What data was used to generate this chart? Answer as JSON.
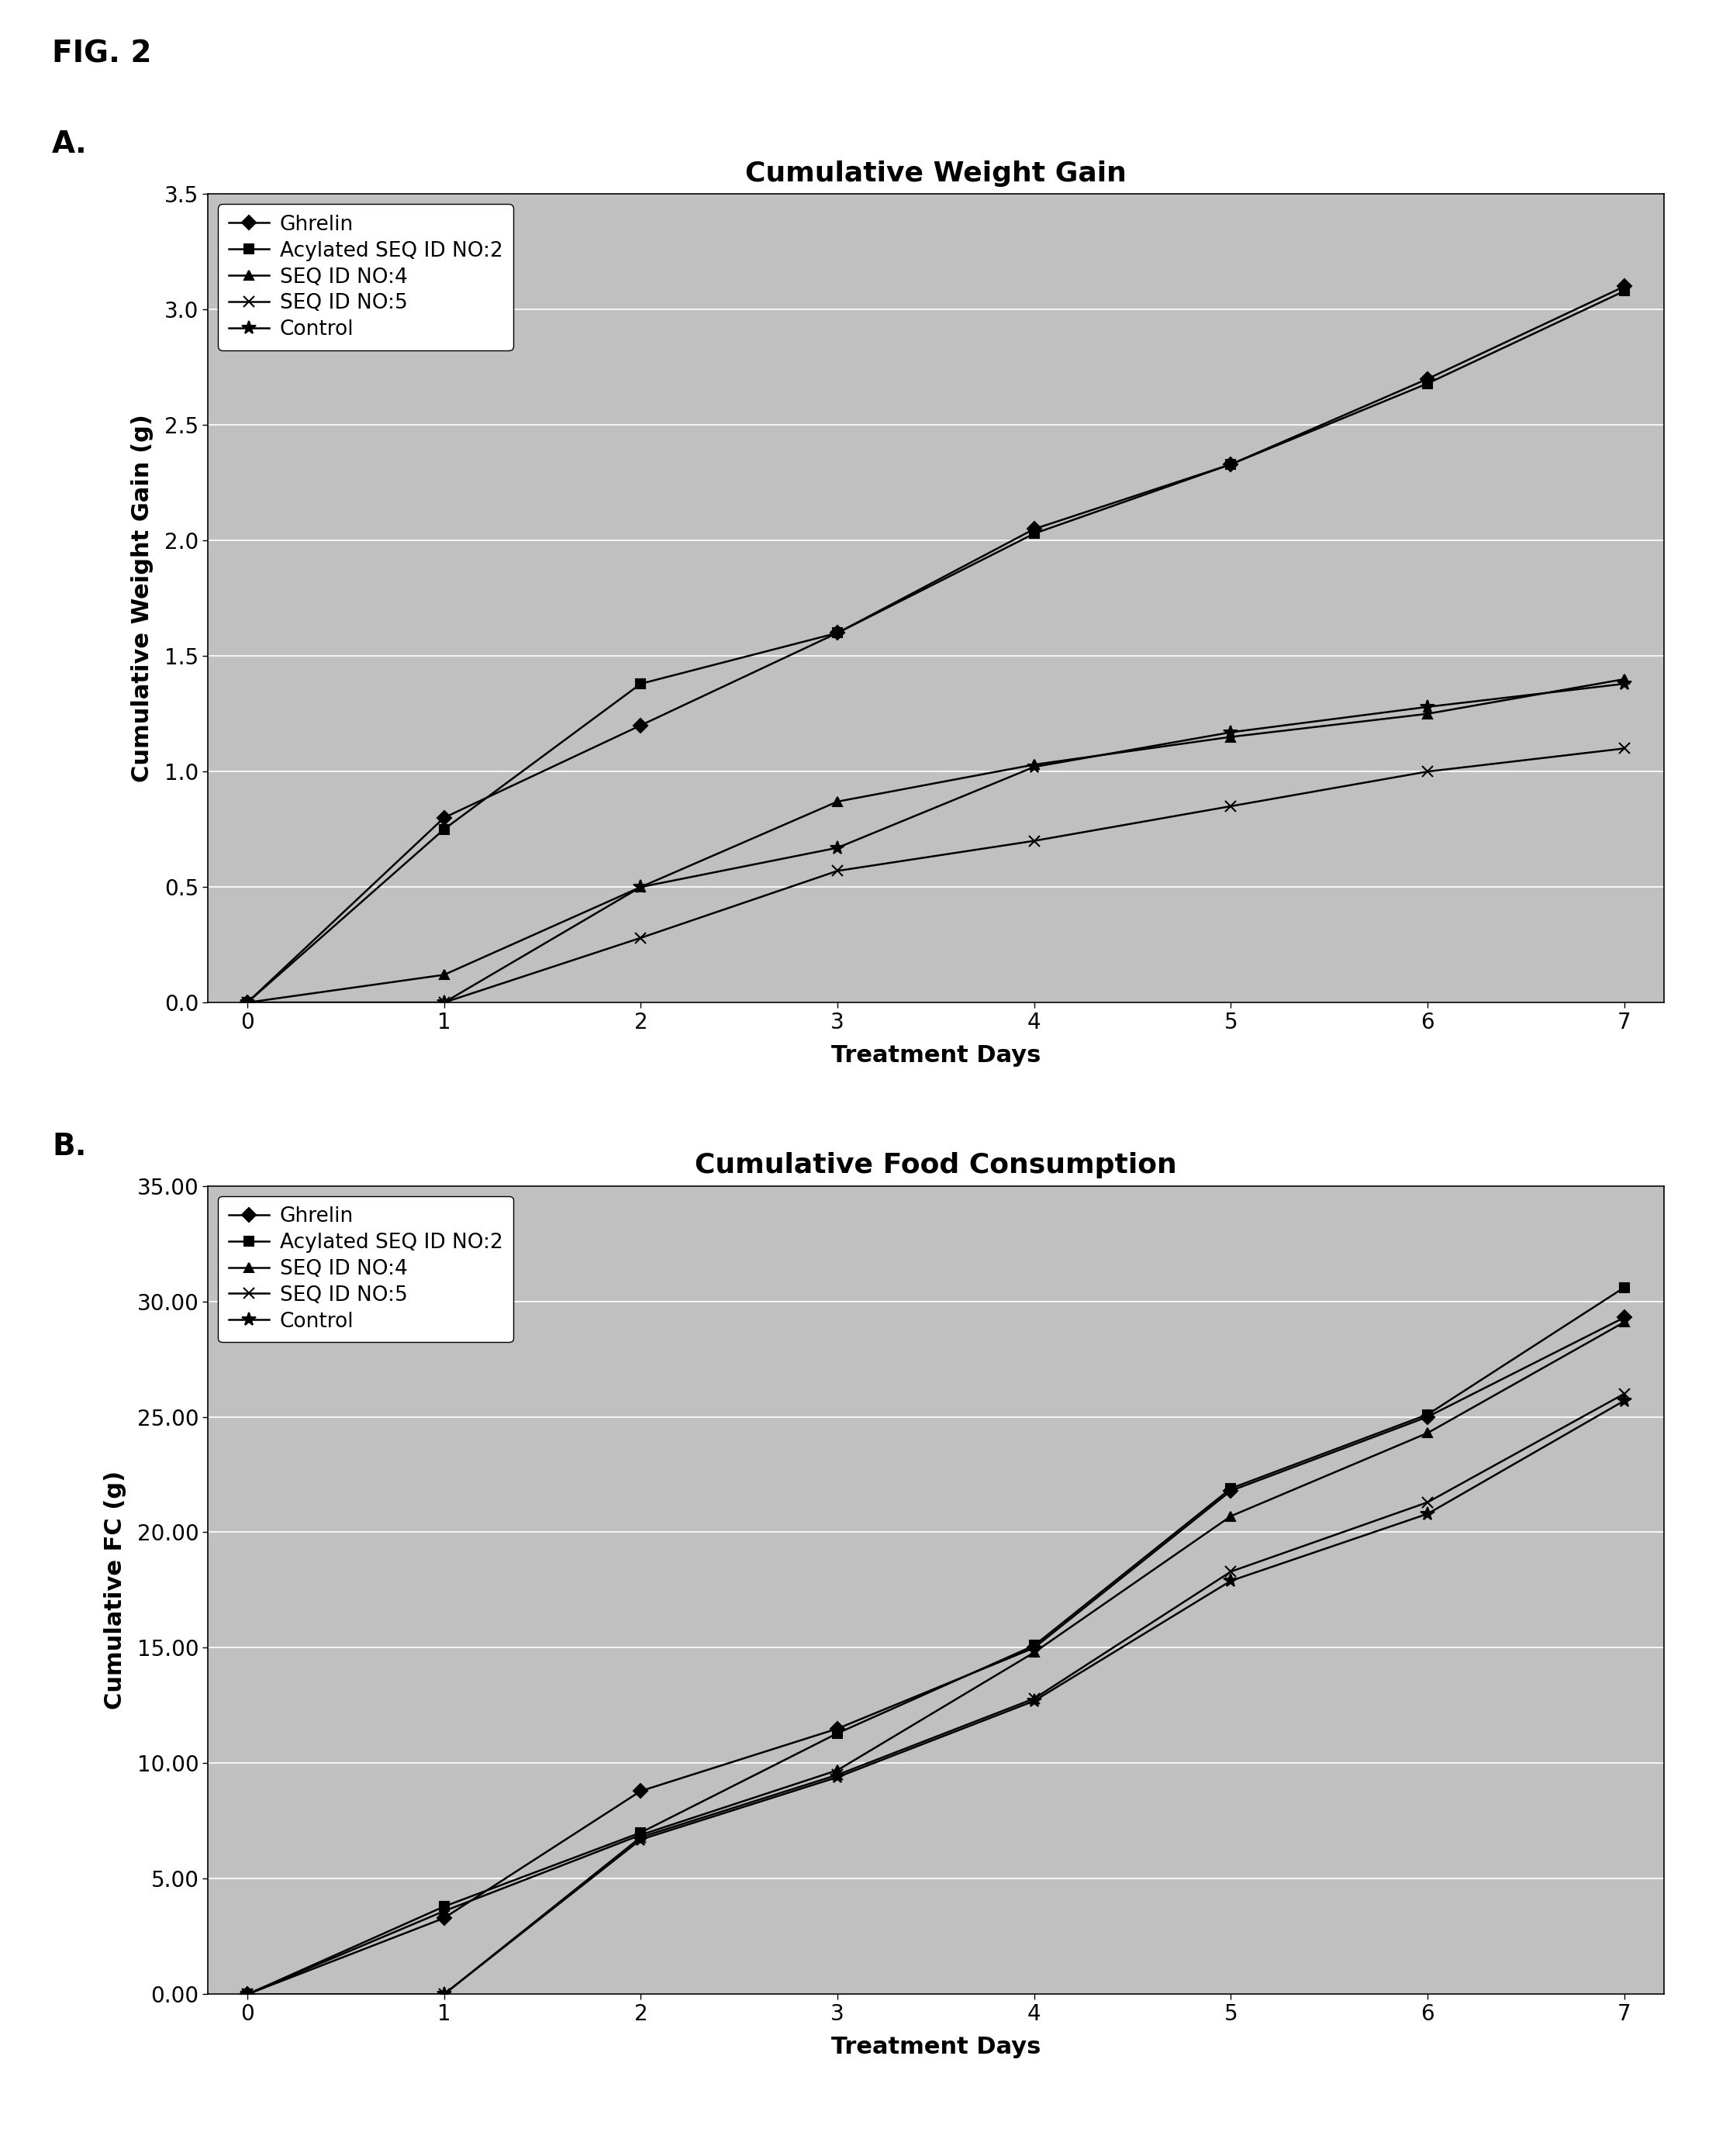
{
  "fig2_label": "FIG. 2",
  "panel_A_label": "A.",
  "panel_B_label": "B.",
  "plot_A": {
    "title": "Cumulative Weight Gain",
    "xlabel": "Treatment Days",
    "ylabel": "Cumulative Weight Gain (g)",
    "xlim": [
      -0.2,
      7.2
    ],
    "ylim": [
      0.0,
      3.5
    ],
    "yticks": [
      0.0,
      0.5,
      1.0,
      1.5,
      2.0,
      2.5,
      3.0,
      3.5
    ],
    "xticks": [
      0,
      1,
      2,
      3,
      4,
      5,
      6,
      7
    ],
    "series": [
      {
        "label": "Ghrelin",
        "x": [
          0,
          1,
          2,
          3,
          4,
          5,
          6,
          7
        ],
        "y": [
          0.0,
          0.8,
          1.2,
          1.6,
          2.05,
          2.33,
          2.7,
          3.1
        ],
        "color": "#000000",
        "marker": "D",
        "markersize": 9,
        "linewidth": 1.8
      },
      {
        "label": "Acylated SEQ ID NO:2",
        "x": [
          0,
          1,
          2,
          3,
          4,
          5,
          6,
          7
        ],
        "y": [
          0.0,
          0.75,
          1.38,
          1.6,
          2.03,
          2.33,
          2.68,
          3.08
        ],
        "color": "#000000",
        "marker": "s",
        "markersize": 9,
        "linewidth": 1.8
      },
      {
        "label": "SEQ ID NO:4",
        "x": [
          0,
          1,
          2,
          3,
          4,
          5,
          6,
          7
        ],
        "y": [
          0.0,
          0.12,
          0.5,
          0.87,
          1.03,
          1.15,
          1.25,
          1.4
        ],
        "color": "#000000",
        "marker": "^",
        "markersize": 9,
        "linewidth": 1.8
      },
      {
        "label": "SEQ ID NO:5",
        "x": [
          0,
          1,
          2,
          3,
          4,
          5,
          6,
          7
        ],
        "y": [
          0.0,
          0.0,
          0.28,
          0.57,
          0.7,
          0.85,
          1.0,
          1.1
        ],
        "color": "#000000",
        "marker": "x",
        "markersize": 10,
        "linewidth": 1.8
      },
      {
        "label": "Control",
        "x": [
          0,
          1,
          2,
          3,
          4,
          5,
          6,
          7
        ],
        "y": [
          0.0,
          0.0,
          0.5,
          0.67,
          1.02,
          1.17,
          1.28,
          1.38
        ],
        "color": "#000000",
        "marker": "*",
        "markersize": 13,
        "linewidth": 1.8
      }
    ]
  },
  "plot_B": {
    "title": "Cumulative Food Consumption",
    "xlabel": "Treatment Days",
    "ylabel": "Cumulative FC (g)",
    "xlim": [
      -0.2,
      7.2
    ],
    "ylim": [
      0.0,
      35.0
    ],
    "yticks": [
      0.0,
      5.0,
      10.0,
      15.0,
      20.0,
      25.0,
      30.0,
      35.0
    ],
    "xticks": [
      0,
      1,
      2,
      3,
      4,
      5,
      6,
      7
    ],
    "series": [
      {
        "label": "Ghrelin",
        "x": [
          0,
          1,
          2,
          3,
          4,
          5,
          6,
          7
        ],
        "y": [
          0.0,
          3.3,
          8.8,
          11.5,
          15.0,
          21.8,
          25.0,
          29.3
        ],
        "color": "#000000",
        "marker": "D",
        "markersize": 9,
        "linewidth": 1.8
      },
      {
        "label": "Acylated SEQ ID NO:2",
        "x": [
          0,
          1,
          2,
          3,
          4,
          5,
          6,
          7
        ],
        "y": [
          0.0,
          3.8,
          7.0,
          11.3,
          15.1,
          21.9,
          25.1,
          30.6
        ],
        "color": "#000000",
        "marker": "s",
        "markersize": 9,
        "linewidth": 1.8
      },
      {
        "label": "SEQ ID NO:4",
        "x": [
          0,
          1,
          2,
          3,
          4,
          5,
          6,
          7
        ],
        "y": [
          0.0,
          3.6,
          6.9,
          9.7,
          14.8,
          20.7,
          24.3,
          29.1
        ],
        "color": "#000000",
        "marker": "^",
        "markersize": 9,
        "linewidth": 1.8
      },
      {
        "label": "SEQ ID NO:5",
        "x": [
          0,
          1,
          2,
          3,
          4,
          5,
          6,
          7
        ],
        "y": [
          0.0,
          0.0,
          6.8,
          9.5,
          12.8,
          18.3,
          21.3,
          26.0
        ],
        "color": "#000000",
        "marker": "x",
        "markersize": 10,
        "linewidth": 1.8
      },
      {
        "label": "Control",
        "x": [
          0,
          1,
          2,
          3,
          4,
          5,
          6,
          7
        ],
        "y": [
          0.0,
          0.0,
          6.7,
          9.4,
          12.7,
          17.9,
          20.8,
          25.7
        ],
        "color": "#000000",
        "marker": "*",
        "markersize": 13,
        "linewidth": 1.8
      }
    ]
  },
  "plot_bg_color": "#c0c0c0",
  "fig_bg_color": "#ffffff",
  "grid_color": "#ffffff",
  "title_fontsize": 26,
  "label_fontsize": 22,
  "tick_fontsize": 20,
  "legend_fontsize": 19
}
